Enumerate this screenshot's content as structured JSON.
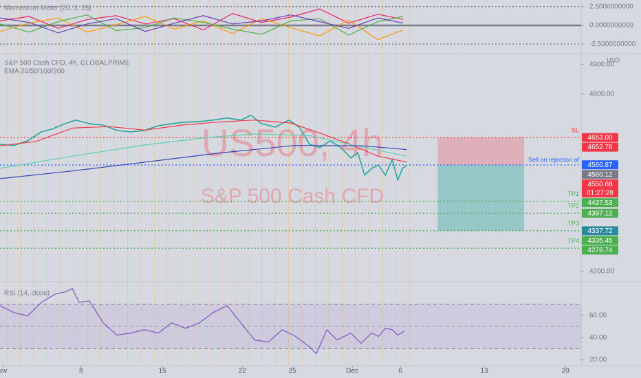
{
  "chart_data": [
    {
      "type": "line",
      "title": "Momentum Meter (20, 3, 25)",
      "ylim": [
        -3.5,
        3.4
      ],
      "yticks": [
        {
          "value": 2.5,
          "label": "2.5000000000"
        },
        {
          "value": 0,
          "label": "0.0000000000"
        },
        {
          "value": -2.5,
          "label": "-2.5000000000"
        }
      ],
      "series": [
        {
          "color": "#e91e63",
          "x": [
            0,
            8,
            16,
            24,
            32,
            40,
            48,
            56,
            64,
            72,
            80,
            88,
            96,
            104,
            111
          ],
          "values": [
            0.6,
            1.2,
            -0.4,
            0.8,
            1.3,
            0.2,
            0.9,
            -0.6,
            1.6,
            0.4,
            1.1,
            2.2,
            0.3,
            1.5,
            0.8
          ]
        },
        {
          "color": "#ff9800",
          "x": [
            0,
            8,
            16,
            24,
            32,
            40,
            48,
            56,
            64,
            72,
            80,
            88,
            96,
            104,
            111
          ],
          "values": [
            -0.8,
            0.3,
            1.0,
            -0.9,
            0.1,
            1.2,
            -0.5,
            0.6,
            -1.1,
            0.9,
            -0.3,
            -1.4,
            0.7,
            -1.9,
            -0.6
          ]
        },
        {
          "color": "#4caf50",
          "x": [
            0,
            8,
            16,
            24,
            32,
            40,
            48,
            56,
            64,
            72,
            80,
            88,
            96,
            104,
            111
          ],
          "values": [
            0.2,
            -0.9,
            0.5,
            1.4,
            -0.7,
            -0.3,
            1.0,
            0.4,
            -0.5,
            -1.2,
            0.6,
            0.9,
            -1.3,
            0.5,
            1.2
          ]
        },
        {
          "color": "#673ab7",
          "x": [
            0,
            8,
            16,
            24,
            32,
            40,
            48,
            56,
            64,
            72,
            80,
            88,
            96,
            104,
            111
          ],
          "values": [
            1.0,
            0.4,
            -1.0,
            0.2,
            0.9,
            -0.8,
            0.3,
            1.3,
            0.2,
            0.6,
            1.4,
            0.5,
            -0.4,
            1.0,
            0.3
          ]
        }
      ]
    },
    {
      "type": "line",
      "title": "S&P 500 Cash CFD, 4h, GLOBALPRIME",
      "subtitle": "EMA 20/50/100/200",
      "watermark": "US500, 4h",
      "watermark_subtitle": "S&P 500 Cash CFD",
      "currency": "USD",
      "annotation": "Sell on rejection of",
      "xlim": [
        0,
        160
      ],
      "xticks": [
        {
          "value": 1,
          "label": "ov"
        },
        {
          "value": 22.3,
          "label": "8"
        },
        {
          "value": 44.7,
          "label": "15"
        },
        {
          "value": 66.7,
          "label": "22"
        },
        {
          "value": 80.5,
          "label": "25"
        },
        {
          "value": 97,
          "label": "Dec"
        },
        {
          "value": 110.2,
          "label": "6"
        },
        {
          "value": 133.3,
          "label": "13"
        },
        {
          "value": 155.7,
          "label": "20"
        }
      ],
      "ylim": [
        4177,
        4932
      ],
      "yticks": [
        {
          "value": 4200,
          "label": "4200.00"
        },
        {
          "value": 4300,
          "label": "4300.00"
        },
        {
          "value": 4800,
          "label": "4800.00"
        },
        {
          "value": 4900,
          "label": "4900.00"
        }
      ],
      "series": [
        {
          "color": "#26a69a",
          "x": [
            0,
            3.8,
            7.6,
            11.4,
            14.2,
            18,
            20.8,
            24.6,
            28.4,
            32.2,
            36,
            39.8,
            43.6,
            47.3,
            51.1,
            54.9,
            58.7,
            62.5,
            66.3,
            69.1,
            72,
            75.8,
            79.5,
            82.4,
            85.2,
            88.1,
            90.9,
            93.8,
            96.6,
            98.5,
            100.4,
            102.3,
            104.2,
            106.1,
            108,
            109.5,
            110.8,
            112.1
          ],
          "values": [
            4630,
            4626,
            4642,
            4672,
            4681,
            4700,
            4712,
            4700,
            4695,
            4677,
            4672,
            4677,
            4693,
            4700,
            4705,
            4707,
            4712,
            4719,
            4712,
            4728,
            4700,
            4688,
            4712,
            4688,
            4630,
            4619,
            4642,
            4619,
            4584,
            4602,
            4526,
            4549,
            4560,
            4526,
            4579,
            4509,
            4549,
            4560
          ]
        },
        {
          "color": "#f23645",
          "x": [
            0,
            10,
            20,
            30,
            40,
            50,
            60,
            70,
            80,
            88,
            96,
            104,
            112
          ],
          "values": [
            4625,
            4640,
            4685,
            4690,
            4678,
            4695,
            4705,
            4712,
            4702,
            4668,
            4632,
            4590,
            4570
          ]
        },
        {
          "color": "#5fd1b0",
          "x": [
            0,
            20,
            40,
            57,
            70,
            85,
            100,
            112
          ],
          "values": [
            4549,
            4590,
            4628,
            4653,
            4665,
            4660,
            4620,
            4590
          ]
        },
        {
          "color": "#3446b8",
          "x": [
            0,
            20,
            40,
            60,
            81,
            100,
            112
          ],
          "values": [
            4514,
            4540,
            4570,
            4600,
            4626,
            4625,
            4612
          ]
        }
      ],
      "levels": [
        {
          "name": "SL",
          "value": 4653,
          "color": "#f23645"
        },
        {
          "value": 4560.12,
          "color": "#2962ff"
        },
        {
          "name": "TP1",
          "value": 4437.53,
          "color": "#4caf50"
        },
        {
          "name": "TP2",
          "value": 4397.12,
          "color": "#4caf50"
        },
        {
          "name": "TP3",
          "value": 4337.72,
          "color": "#4caf50"
        },
        {
          "name": "TP4",
          "value": 4278.74,
          "color": "#4caf50"
        }
      ],
      "position": {
        "x": [
          120.5,
          144.3
        ],
        "stop": 4653,
        "entry": 4560.12,
        "target": 4337.72
      },
      "price_tags": [
        {
          "value": 4653,
          "label": "4653.00",
          "color": "#f23645"
        },
        {
          "value": 4652.76,
          "label": "4652.76",
          "color": "#f23645"
        },
        {
          "value": 4560.87,
          "label": "4560.87",
          "color": "#2962ff"
        },
        {
          "value": 4560.12,
          "label": "4560.12",
          "color": "#787b86"
        },
        {
          "value": 4550.68,
          "label": "4550.68",
          "color": "#f23645",
          "countdown": "01:27:28"
        },
        {
          "value": 4437.53,
          "label": "4437.53",
          "color": "#4caf50"
        },
        {
          "value": 4397.12,
          "label": "4397.12",
          "color": "#4caf50"
        },
        {
          "value": 4337.72,
          "label": "4337.72",
          "color": "#2b8a9e"
        },
        {
          "value": 4335.45,
          "label": "4335.45",
          "color": "#4caf50"
        },
        {
          "value": 4278.74,
          "label": "4278.74",
          "color": "#4caf50"
        }
      ]
    },
    {
      "type": "line",
      "title": "RSI (14, close)",
      "ylim": [
        16,
        87
      ],
      "band": [
        30,
        70
      ],
      "midline": 50,
      "yticks": [
        {
          "value": 20,
          "label": "20.00"
        },
        {
          "value": 40,
          "label": "40.00"
        },
        {
          "value": 60,
          "label": "60.00"
        }
      ],
      "series": [
        {
          "color": "#7e57c2",
          "x": [
            0,
            3.8,
            7.6,
            11.4,
            15.2,
            18,
            19.9,
            21.8,
            24.6,
            28.4,
            32.2,
            36,
            39.8,
            43.6,
            47.3,
            51.1,
            54.9,
            58.7,
            62.5,
            66.3,
            70.1,
            73.9,
            77.7,
            81.4,
            85.2,
            87.1,
            90,
            92.8,
            96.6,
            99.4,
            102.3,
            104.2,
            106.1,
            108,
            109.5,
            111.4
          ],
          "values": [
            68.6,
            62.5,
            59.4,
            71.7,
            79,
            81,
            84,
            71.7,
            72.9,
            53.2,
            42.2,
            44,
            47,
            44,
            53.2,
            48.3,
            53.2,
            62.5,
            68.6,
            53.2,
            37.8,
            36,
            47,
            41,
            31.7,
            25.5,
            47,
            37.8,
            44,
            34.8,
            44,
            41,
            48.3,
            47,
            42.2,
            45.9
          ]
        }
      ]
    }
  ]
}
